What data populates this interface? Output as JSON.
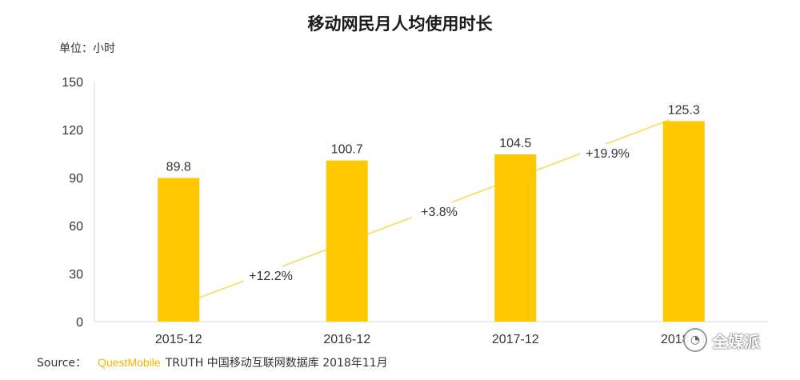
{
  "chart_data": {
    "type": "bar",
    "title": "移动网民月人均使用时长",
    "unit_label": "单位：小时",
    "categories": [
      "2015-12",
      "2016-12",
      "2017-12",
      "2018-11"
    ],
    "values": [
      89.8,
      100.7,
      104.5,
      125.3
    ],
    "value_labels": [
      "89.8",
      "100.7",
      "104.5",
      "125.3"
    ],
    "growth_labels": [
      "+12.2%",
      "+3.8%",
      "+19.9%"
    ],
    "ylim": [
      0,
      150
    ],
    "yticks": [
      0,
      30,
      60,
      90,
      120,
      150
    ],
    "grid": false,
    "legend": "none",
    "bar_color": "#FFC800",
    "trend_color": "#F6E27A"
  },
  "footer": {
    "source_label": "Source：",
    "brand": "QuestMobile",
    "rest": "TRUTH 中国移动互联网数据库 2018年11月"
  },
  "watermark": {
    "text": "全媒派",
    "icon": "wechat-icon"
  }
}
